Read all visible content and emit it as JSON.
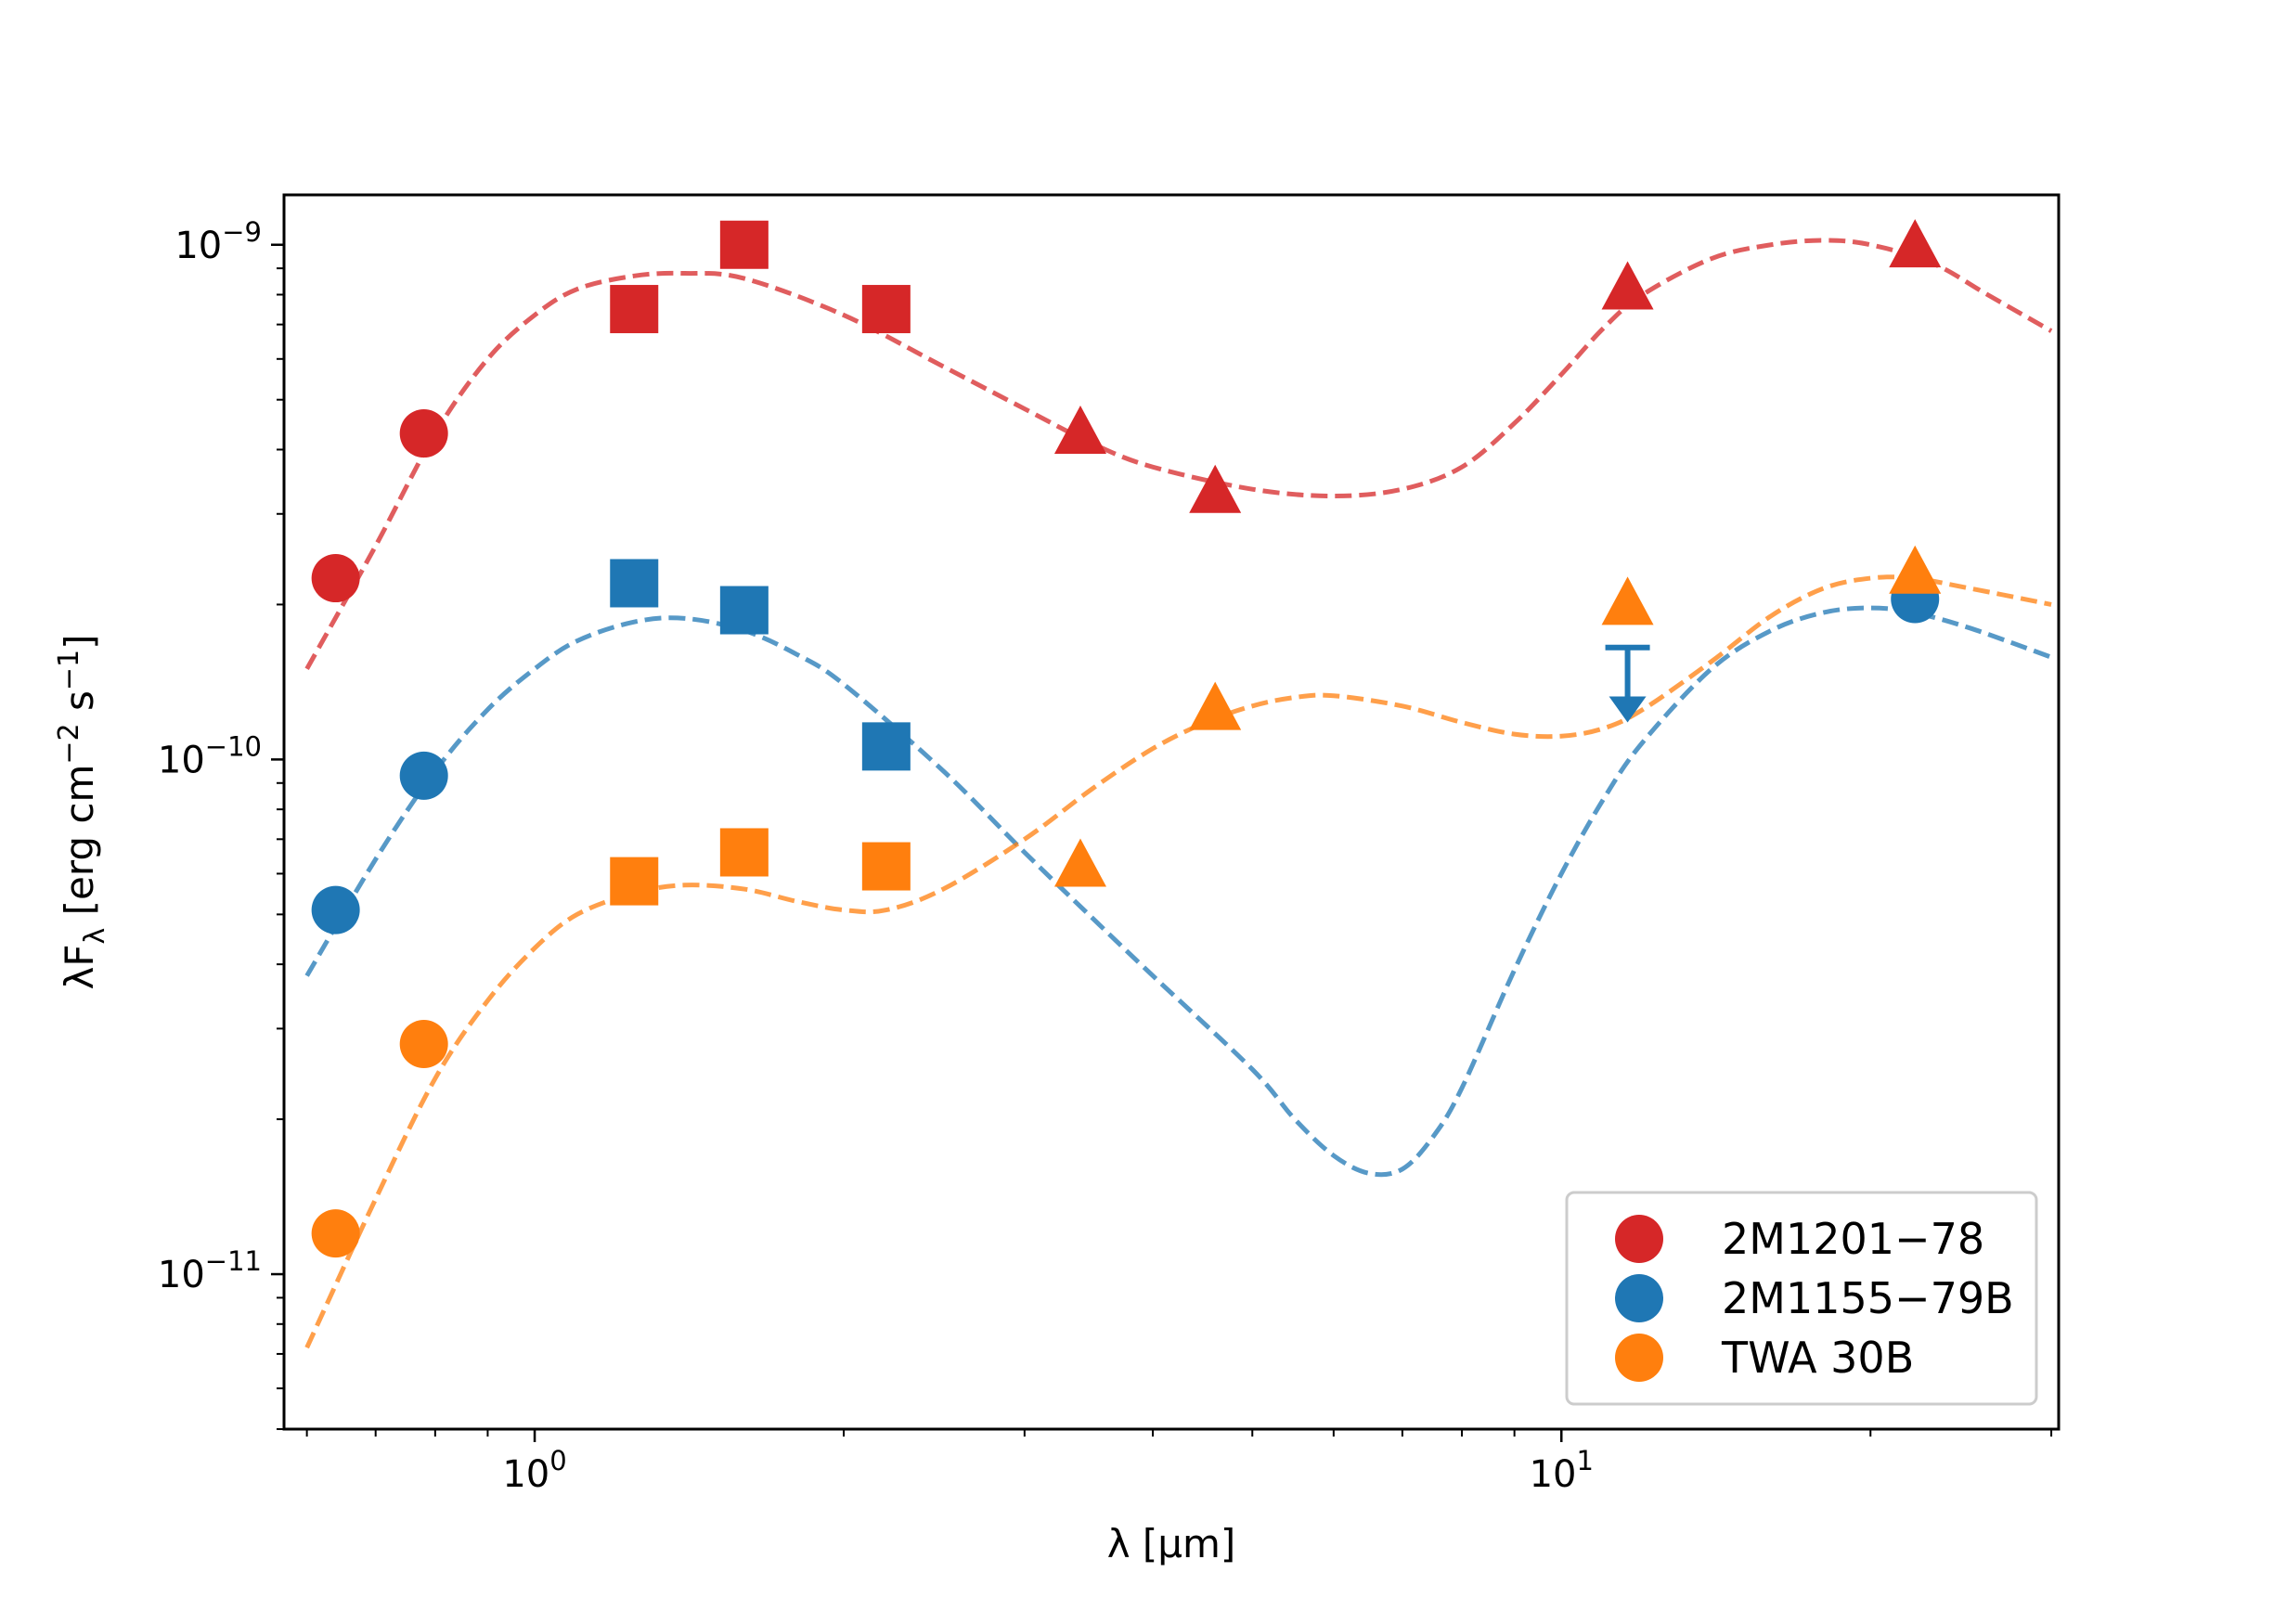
{
  "chart_data": {
    "type": "scatter",
    "title": "",
    "xlabel": "λ [μm]",
    "ylabel": "λF_λ [erg cm^-2 s^-1]",
    "xscale": "log",
    "yscale": "log",
    "xlim": [
      0.57,
      30.5
    ],
    "ylim": [
      5e-12,
      1.25e-09
    ],
    "xticks": [
      {
        "value": 1,
        "base": "10",
        "exp": "0"
      },
      {
        "value": 10,
        "base": "10",
        "exp": "1"
      }
    ],
    "yticks": [
      {
        "value": 1e-11,
        "base": "10",
        "exp": "−11"
      },
      {
        "value": 1e-10,
        "base": "10",
        "exp": "−10"
      },
      {
        "value": 1e-09,
        "base": "10",
        "exp": "−9"
      }
    ],
    "legend_position": "lower-right",
    "series": [
      {
        "name": "2M1201−78",
        "color": "#d62728",
        "points": [
          {
            "x": 0.64,
            "y": 2.25e-10,
            "marker": "circle"
          },
          {
            "x": 0.78,
            "y": 4.3e-10,
            "marker": "circle"
          },
          {
            "x": 1.25,
            "y": 7.5e-10,
            "marker": "square"
          },
          {
            "x": 1.6,
            "y": 1e-09,
            "marker": "square"
          },
          {
            "x": 2.2,
            "y": 7.5e-10,
            "marker": "square"
          },
          {
            "x": 3.4,
            "y": 4.3e-10,
            "marker": "triangle"
          },
          {
            "x": 4.6,
            "y": 3.3e-10,
            "marker": "triangle"
          },
          {
            "x": 11.6,
            "y": 8.2e-10,
            "marker": "triangle"
          },
          {
            "x": 22.1,
            "y": 9.9e-10,
            "marker": "triangle"
          }
        ],
        "model": {
          "x": [
            0.6,
            0.7,
            0.8,
            0.9,
            1.0,
            1.1,
            1.25,
            1.4,
            1.6,
            2.0,
            2.5,
            3.0,
            3.5,
            4.0,
            5.0,
            6.0,
            7.0,
            8.0,
            9.0,
            10.0,
            11.0,
            12.0,
            14.0,
            16.0,
            18.0,
            20.0,
            23.0,
            26.0,
            30.0
          ],
          "y": [
            1.5e-10,
            2.6e-10,
            4.3e-10,
            6e-10,
            7.3e-10,
            8.2e-10,
            8.7e-10,
            8.8e-10,
            8.6e-10,
            7.3e-10,
            5.8e-10,
            4.8e-10,
            4.1e-10,
            3.7e-10,
            3.35e-10,
            3.25e-10,
            3.35e-10,
            3.7e-10,
            4.5e-10,
            5.6e-10,
            6.9e-10,
            8e-10,
            9.4e-10,
            1e-09,
            1.02e-09,
            1e-09,
            9.2e-10,
            8e-10,
            6.8e-10
          ]
        }
      },
      {
        "name": "2M1155−79B",
        "color": "#1f77b4",
        "points": [
          {
            "x": 0.64,
            "y": 5.1e-11,
            "marker": "circle"
          },
          {
            "x": 0.78,
            "y": 9.3e-11,
            "marker": "circle"
          },
          {
            "x": 1.25,
            "y": 2.2e-10,
            "marker": "square"
          },
          {
            "x": 1.6,
            "y": 1.95e-10,
            "marker": "square"
          },
          {
            "x": 2.2,
            "y": 1.06e-10,
            "marker": "square"
          },
          {
            "x": 22.1,
            "y": 2.05e-10,
            "marker": "circle"
          }
        ],
        "upper_limit": {
          "x": 11.6,
          "y": 1.65e-10,
          "y_end": 1.2e-10
        },
        "model": {
          "x": [
            0.6,
            0.7,
            0.8,
            0.9,
            1.0,
            1.1,
            1.25,
            1.4,
            1.6,
            1.8,
            2.0,
            2.5,
            3.0,
            3.5,
            4.0,
            5.0,
            5.5,
            6.0,
            6.5,
            7.0,
            7.5,
            8.0,
            9.0,
            10.0,
            11.0,
            12.0,
            14.0,
            16.0,
            18.0,
            20.0,
            22.0,
            25.0,
            30.0
          ],
          "y": [
            3.8e-11,
            6.4e-11,
            9.5e-11,
            1.25e-10,
            1.5e-10,
            1.7e-10,
            1.85e-10,
            1.88e-10,
            1.78e-10,
            1.6e-10,
            1.4e-10,
            9.5e-11,
            6.6e-11,
            4.9e-11,
            3.8e-11,
            2.5e-11,
            2e-11,
            1.7e-11,
            1.57e-11,
            1.6e-11,
            1.85e-11,
            2.3e-11,
            3.9e-11,
            6e-11,
            8.4e-11,
            1.08e-10,
            1.5e-10,
            1.78e-10,
            1.93e-10,
            1.97e-10,
            1.93e-10,
            1.8e-10,
            1.58e-10
          ]
        }
      },
      {
        "name": "TWA 30B",
        "color": "#ff7f0e",
        "points": [
          {
            "x": 0.64,
            "y": 1.2e-11,
            "marker": "circle"
          },
          {
            "x": 0.78,
            "y": 2.8e-11,
            "marker": "circle"
          },
          {
            "x": 1.25,
            "y": 5.8e-11,
            "marker": "square"
          },
          {
            "x": 1.6,
            "y": 6.6e-11,
            "marker": "square"
          },
          {
            "x": 2.2,
            "y": 6.2e-11,
            "marker": "square"
          },
          {
            "x": 3.4,
            "y": 6.2e-11,
            "marker": "triangle"
          },
          {
            "x": 4.6,
            "y": 1.25e-10,
            "marker": "triangle"
          },
          {
            "x": 11.6,
            "y": 2e-10,
            "marker": "triangle"
          },
          {
            "x": 22.1,
            "y": 2.3e-10,
            "marker": "triangle"
          }
        ],
        "model": {
          "x": [
            0.6,
            0.7,
            0.8,
            0.9,
            1.0,
            1.1,
            1.25,
            1.4,
            1.6,
            1.8,
            2.0,
            2.2,
            2.5,
            3.0,
            3.5,
            4.0,
            4.5,
            5.0,
            5.5,
            6.0,
            7.0,
            8.0,
            9.0,
            10.0,
            11.0,
            12.0,
            14.0,
            16.0,
            18.0,
            20.0,
            22.0,
            25.0,
            30.0
          ],
          "y": [
            7.2e-12,
            1.4e-11,
            2.4e-11,
            3.4e-11,
            4.3e-11,
            5e-11,
            5.5e-11,
            5.7e-11,
            5.6e-11,
            5.3e-11,
            5.1e-11,
            5.1e-11,
            5.6e-11,
            7e-11,
            8.8e-11,
            1.05e-10,
            1.18e-10,
            1.27e-10,
            1.32e-10,
            1.33e-10,
            1.27e-10,
            1.18e-10,
            1.12e-10,
            1.11e-10,
            1.15e-10,
            1.25e-10,
            1.55e-10,
            1.9e-10,
            2.15e-10,
            2.25e-10,
            2.25e-10,
            2.15e-10,
            2e-10
          ]
        }
      }
    ]
  }
}
